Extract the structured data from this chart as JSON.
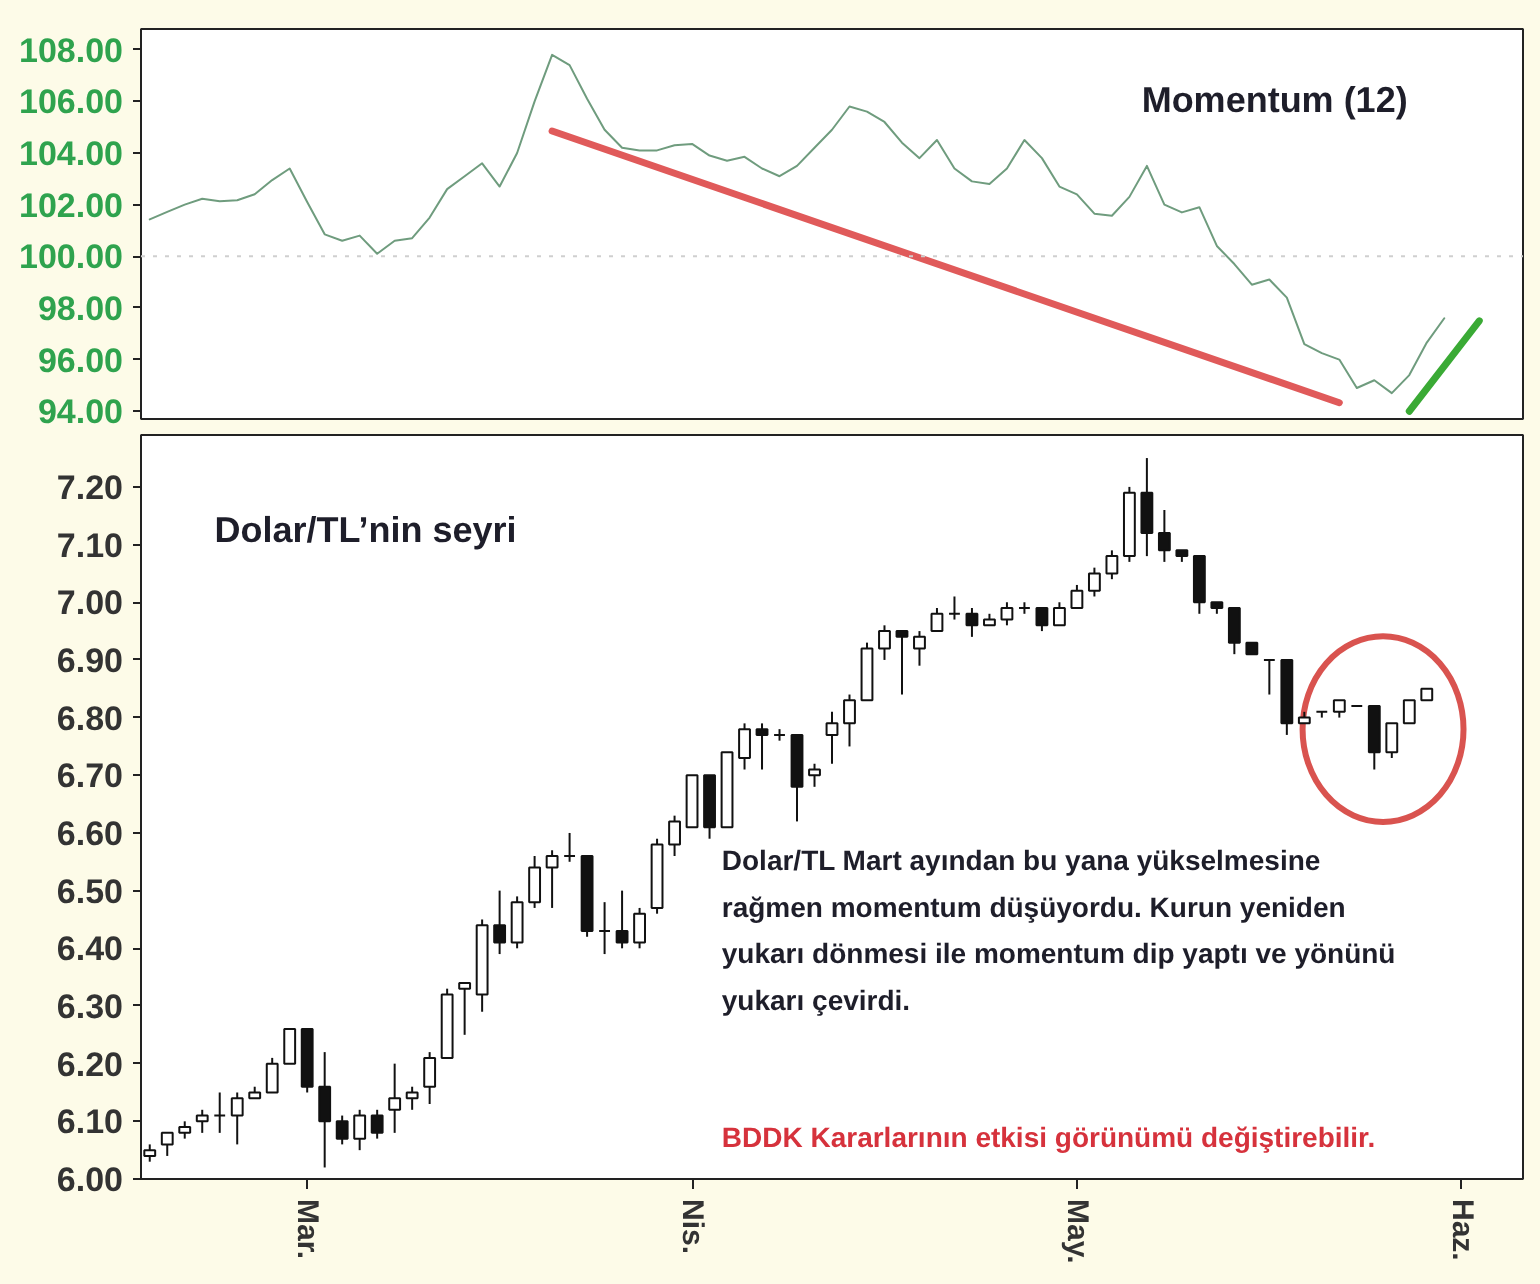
{
  "chart_data": [
    {
      "type": "line",
      "annotations": [
        "Momentum (12)"
      ],
      "categories": [
        null,
        null,
        null,
        null,
        null,
        null,
        null,
        null,
        null,
        null,
        null,
        null,
        null,
        null,
        null,
        null,
        null,
        null,
        null,
        null,
        null,
        null,
        null,
        null,
        null,
        null,
        null,
        null,
        null,
        null,
        null,
        null,
        null,
        null,
        null,
        null,
        null,
        null,
        null,
        null,
        null,
        null,
        null,
        null,
        null,
        null,
        null,
        null,
        null,
        null,
        null,
        null,
        null,
        null,
        null,
        null,
        null,
        null,
        null,
        null,
        null,
        null,
        null,
        null,
        null,
        null,
        null,
        null,
        null,
        null,
        null,
        null,
        null,
        null,
        null,
        null,
        null,
        null,
        null
      ],
      "ylim": [
        93.7,
        108.8
      ],
      "yticks": [
        {
          "value": 94,
          "label": "94.00"
        },
        {
          "value": 96,
          "label": "96.00"
        },
        {
          "value": 98,
          "label": "98.00"
        },
        {
          "value": 100,
          "label": "100.00"
        },
        {
          "value": 102,
          "label": "102.00"
        },
        {
          "value": 104,
          "label": "104.00"
        },
        {
          "value": 106,
          "label": "106.00"
        },
        {
          "value": 108,
          "label": "108.00"
        }
      ],
      "tick_labels": "y",
      "grid": false,
      "ref_lines": [
        {
          "axis": "y",
          "value": 100,
          "color": "#cfcfcf",
          "line_style": "dotted"
        }
      ],
      "series": [
        {
          "color": "#6f9c7e",
          "values": [
            101.43,
            101.72,
            102.0,
            102.23,
            102.13,
            102.17,
            102.4,
            102.95,
            103.4,
            102.1,
            100.85,
            100.6,
            100.8,
            100.1,
            100.6,
            100.7,
            101.5,
            102.6,
            103.1,
            103.6,
            102.7,
            104.0,
            106.0,
            107.8,
            107.4,
            106.1,
            104.9,
            104.2,
            104.1,
            104.1,
            104.3,
            104.35,
            103.9,
            103.7,
            103.85,
            103.4,
            103.1,
            103.5,
            104.2,
            104.9,
            105.8,
            105.6,
            105.2,
            104.4,
            103.8,
            104.5,
            103.4,
            102.9,
            102.8,
            103.4,
            104.5,
            103.8,
            102.7,
            102.4,
            101.65,
            101.57,
            102.3,
            103.5,
            102.0,
            101.7,
            101.9,
            100.4,
            99.7,
            98.9,
            99.1,
            98.4,
            96.6,
            96.25,
            96.0,
            94.9,
            95.2,
            94.7,
            95.4,
            96.66,
            97.6,
            null,
            null,
            null,
            null
          ]
        },
        {
          "type": "line",
          "color": "#e05a5a",
          "values": [
            null,
            null,
            null,
            null,
            null,
            null,
            null,
            null,
            null,
            null,
            null,
            null,
            null,
            null,
            null,
            null,
            null,
            null,
            null,
            null,
            null,
            null,
            null,
            104.85,
            null,
            null,
            null,
            null,
            null,
            null,
            null,
            null,
            null,
            null,
            null,
            null,
            null,
            null,
            null,
            null,
            null,
            null,
            null,
            null,
            null,
            null,
            null,
            null,
            null,
            null,
            null,
            null,
            null,
            null,
            null,
            null,
            null,
            null,
            null,
            null,
            null,
            null,
            null,
            null,
            null,
            null,
            null,
            null,
            94.33,
            null,
            null,
            null,
            null,
            null,
            null,
            null,
            null,
            null,
            null
          ]
        },
        {
          "type": "line",
          "color": "#3aaa35",
          "values": [
            null,
            null,
            null,
            null,
            null,
            null,
            null,
            null,
            null,
            null,
            null,
            null,
            null,
            null,
            null,
            null,
            null,
            null,
            null,
            null,
            null,
            null,
            null,
            null,
            null,
            null,
            null,
            null,
            null,
            null,
            null,
            null,
            null,
            null,
            null,
            null,
            null,
            null,
            null,
            null,
            null,
            null,
            null,
            null,
            null,
            null,
            null,
            null,
            null,
            null,
            null,
            null,
            null,
            null,
            null,
            null,
            null,
            null,
            null,
            null,
            null,
            null,
            null,
            null,
            null,
            null,
            null,
            null,
            null,
            null,
            null,
            null,
            94.0,
            null,
            null,
            null,
            97.5,
            null,
            null
          ]
        }
      ]
    },
    {
      "type": "candlestick",
      "annotations": [
        "Dolar/TL’nin seyri",
        "Dolar/TL Mart ayından bu yana yükselmesine\nrağmen momentum düşüyordu. Kurun yeniden\nyukarı dönmesi ile momentum dip yaptı ve yönünü\nyukarı çevirdi.",
        "BDDK Kararlarının etkisi görünümü değiştirebilir."
      ],
      "categories": [
        null,
        null,
        null,
        null,
        null,
        null,
        null,
        null,
        null,
        "Mar.",
        null,
        null,
        null,
        null,
        null,
        null,
        null,
        null,
        null,
        null,
        null,
        null,
        null,
        null,
        null,
        null,
        null,
        null,
        null,
        null,
        null,
        "Nis.",
        null,
        null,
        null,
        null,
        null,
        null,
        null,
        null,
        null,
        null,
        null,
        null,
        null,
        null,
        null,
        null,
        null,
        null,
        null,
        null,
        null,
        "May.",
        null,
        null,
        null,
        null,
        null,
        null,
        null,
        null,
        null,
        null,
        null,
        null,
        null,
        null,
        null,
        null,
        null,
        null,
        null,
        null,
        null,
        "Haz.",
        null,
        null,
        null
      ],
      "ylim": [
        6.0,
        7.29
      ],
      "yticks": [
        {
          "value": 6.0,
          "label": "6.00"
        },
        {
          "value": 6.1,
          "label": "6.10"
        },
        {
          "value": 6.2,
          "label": "6.20"
        },
        {
          "value": 6.3,
          "label": "6.30"
        },
        {
          "value": 6.4,
          "label": "6.40"
        },
        {
          "value": 6.5,
          "label": "6.50"
        },
        {
          "value": 6.6,
          "label": "6.60"
        },
        {
          "value": 6.7,
          "label": "6.70"
        },
        {
          "value": 6.8,
          "label": "6.80"
        },
        {
          "value": 6.9,
          "label": "6.90"
        },
        {
          "value": 7.0,
          "label": "7.00"
        },
        {
          "value": 7.1,
          "label": "7.10"
        },
        {
          "value": 7.2,
          "label": "7.20"
        }
      ],
      "grid": false,
      "ohlc": [
        [
          6.04,
          6.06,
          6.03,
          6.05
        ],
        [
          6.06,
          6.08,
          6.04,
          6.08
        ],
        [
          6.08,
          6.1,
          6.07,
          6.09
        ],
        [
          6.1,
          6.12,
          6.08,
          6.11
        ],
        [
          6.11,
          6.15,
          6.08,
          6.11
        ],
        [
          6.11,
          6.15,
          6.06,
          6.14
        ],
        [
          6.14,
          6.16,
          6.14,
          6.15
        ],
        [
          6.15,
          6.21,
          6.15,
          6.2
        ],
        [
          6.2,
          6.26,
          6.2,
          6.26
        ],
        [
          6.26,
          6.26,
          6.15,
          6.16
        ],
        [
          6.16,
          6.22,
          6.02,
          6.1
        ],
        [
          6.1,
          6.11,
          6.06,
          6.07
        ],
        [
          6.07,
          6.12,
          6.05,
          6.11
        ],
        [
          6.11,
          6.12,
          6.07,
          6.08
        ],
        [
          6.12,
          6.2,
          6.08,
          6.14
        ],
        [
          6.14,
          6.16,
          6.12,
          6.15
        ],
        [
          6.16,
          6.22,
          6.13,
          6.21
        ],
        [
          6.21,
          6.33,
          6.21,
          6.32
        ],
        [
          6.33,
          6.34,
          6.25,
          6.34
        ],
        [
          6.32,
          6.45,
          6.29,
          6.44
        ],
        [
          6.44,
          6.5,
          6.39,
          6.41
        ],
        [
          6.41,
          6.49,
          6.4,
          6.48
        ],
        [
          6.48,
          6.56,
          6.47,
          6.54
        ],
        [
          6.54,
          6.57,
          6.47,
          6.56
        ],
        [
          6.56,
          6.6,
          6.55,
          6.56
        ],
        [
          6.56,
          6.56,
          6.42,
          6.43
        ],
        [
          6.43,
          6.48,
          6.39,
          6.43
        ],
        [
          6.43,
          6.5,
          6.4,
          6.41
        ],
        [
          6.41,
          6.47,
          6.4,
          6.46
        ],
        [
          6.47,
          6.59,
          6.46,
          6.58
        ],
        [
          6.58,
          6.63,
          6.56,
          6.62
        ],
        [
          6.61,
          6.7,
          6.61,
          6.7
        ],
        [
          6.7,
          6.7,
          6.59,
          6.61
        ],
        [
          6.61,
          6.74,
          6.61,
          6.74
        ],
        [
          6.73,
          6.79,
          6.71,
          6.78
        ],
        [
          6.78,
          6.79,
          6.71,
          6.77
        ],
        [
          6.77,
          6.78,
          6.76,
          6.77
        ],
        [
          6.77,
          6.77,
          6.62,
          6.68
        ],
        [
          6.7,
          6.72,
          6.68,
          6.71
        ],
        [
          6.77,
          6.81,
          6.72,
          6.79
        ],
        [
          6.79,
          6.84,
          6.75,
          6.83
        ],
        [
          6.83,
          6.93,
          6.83,
          6.92
        ],
        [
          6.92,
          6.96,
          6.9,
          6.95
        ],
        [
          6.95,
          6.95,
          6.84,
          6.94
        ],
        [
          6.92,
          6.95,
          6.89,
          6.94
        ],
        [
          6.95,
          6.99,
          6.95,
          6.98
        ],
        [
          6.98,
          7.01,
          6.97,
          6.98
        ],
        [
          6.98,
          6.99,
          6.94,
          6.96
        ],
        [
          6.96,
          6.98,
          6.96,
          6.97
        ],
        [
          6.97,
          7.0,
          6.96,
          6.99
        ],
        [
          6.99,
          7.0,
          6.98,
          6.99
        ],
        [
          6.99,
          6.99,
          6.95,
          6.96
        ],
        [
          6.96,
          7.0,
          6.96,
          6.99
        ],
        [
          6.99,
          7.03,
          6.99,
          7.02
        ],
        [
          7.02,
          7.06,
          7.01,
          7.05
        ],
        [
          7.05,
          7.09,
          7.04,
          7.08
        ],
        [
          7.08,
          7.2,
          7.07,
          7.19
        ],
        [
          7.19,
          7.25,
          7.08,
          7.12
        ],
        [
          7.12,
          7.16,
          7.07,
          7.09
        ],
        [
          7.09,
          7.09,
          7.07,
          7.08
        ],
        [
          7.08,
          7.08,
          6.98,
          7.0
        ],
        [
          7.0,
          7.0,
          6.98,
          6.99
        ],
        [
          6.99,
          6.99,
          6.91,
          6.93
        ],
        [
          6.93,
          6.93,
          6.91,
          6.91
        ],
        [
          6.9,
          6.9,
          6.84,
          6.9
        ],
        [
          6.9,
          6.9,
          6.77,
          6.79
        ],
        [
          6.79,
          6.81,
          6.79,
          6.8
        ],
        [
          6.81,
          6.81,
          6.8,
          6.81
        ],
        [
          6.81,
          6.83,
          6.8,
          6.83
        ],
        [
          6.82,
          6.82,
          6.82,
          6.82
        ],
        [
          6.82,
          6.82,
          6.71,
          6.74
        ],
        [
          6.74,
          6.79,
          6.73,
          6.79
        ],
        [
          6.79,
          6.83,
          6.79,
          6.83
        ],
        [
          6.83,
          6.85,
          6.83,
          6.85
        ],
        null,
        null,
        null,
        null,
        null
      ]
    }
  ]
}
